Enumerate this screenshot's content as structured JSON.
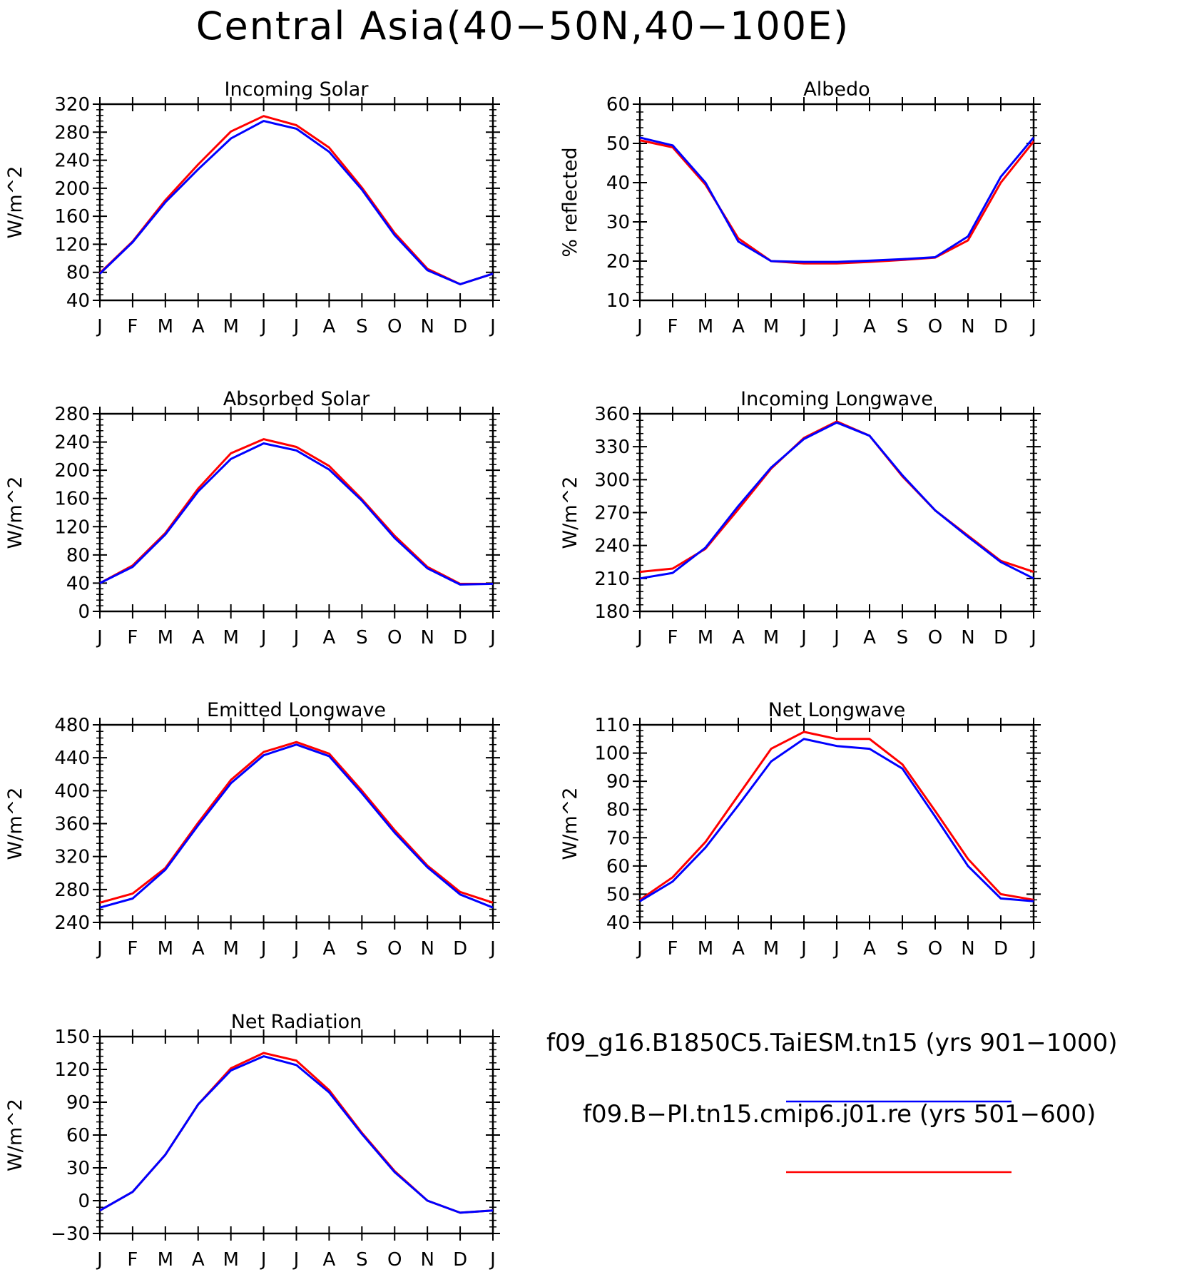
{
  "figure": {
    "title": "Central Asia(40−50N,40−100E)"
  },
  "months": [
    "J",
    "F",
    "M",
    "A",
    "M",
    "J",
    "J",
    "A",
    "S",
    "O",
    "N",
    "D",
    "J"
  ],
  "legend": [
    {
      "label": "f09_g16.B1850C5.TaiESM.tn15 (yrs 901−1000)",
      "color": "#0000ff"
    },
    {
      "label": "f09.B−PI.tn15.cmip6.j01.re (yrs 501−600)",
      "color": "#ff0000"
    }
  ],
  "colors": {
    "blue": "#0000ff",
    "red": "#ff0000"
  },
  "chart_data": [
    {
      "type": "line",
      "title": "Incoming Solar",
      "ylabel": "W/m^2",
      "ylim": [
        40,
        320
      ],
      "yticks": [
        40,
        80,
        120,
        160,
        200,
        240,
        280,
        320
      ],
      "categories": [
        "J",
        "F",
        "M",
        "A",
        "M",
        "J",
        "J",
        "A",
        "S",
        "O",
        "N",
        "D",
        "J"
      ],
      "series": [
        {
          "color": "blue",
          "values": [
            78,
            123,
            180,
            227,
            271,
            296,
            285,
            252,
            198,
            133,
            83,
            63,
            78
          ]
        },
        {
          "color": "red",
          "values": [
            79,
            124,
            183,
            234,
            281,
            303,
            290,
            258,
            201,
            136,
            85,
            63,
            78
          ]
        }
      ]
    },
    {
      "type": "line",
      "title": "Albedo",
      "ylabel": "% reflected",
      "ylim": [
        10,
        60
      ],
      "yticks": [
        10,
        20,
        30,
        40,
        50,
        60
      ],
      "categories": [
        "J",
        "F",
        "M",
        "A",
        "M",
        "J",
        "J",
        "A",
        "S",
        "O",
        "N",
        "D",
        "J"
      ],
      "series": [
        {
          "color": "blue",
          "values": [
            51.5,
            49.5,
            40,
            25,
            20,
            19.8,
            19.8,
            20.1,
            20.5,
            21.0,
            26.3,
            41.5,
            51.5
          ]
        },
        {
          "color": "red",
          "values": [
            50.8,
            49.0,
            39.5,
            25.8,
            20.0,
            19.4,
            19.4,
            19.8,
            20.3,
            20.9,
            25.3,
            40.0,
            50.5
          ]
        }
      ]
    },
    {
      "type": "line",
      "title": "Absorbed Solar",
      "ylabel": "W/m^2",
      "ylim": [
        0,
        280
      ],
      "yticks": [
        0,
        40,
        80,
        120,
        160,
        200,
        240,
        280
      ],
      "categories": [
        "J",
        "F",
        "M",
        "A",
        "M",
        "J",
        "J",
        "A",
        "S",
        "O",
        "N",
        "D",
        "J"
      ],
      "series": [
        {
          "color": "blue",
          "values": [
            40,
            63,
            109,
            170,
            216,
            238,
            228,
            201,
            157,
            104,
            61,
            38,
            39
          ]
        },
        {
          "color": "red",
          "values": [
            40,
            65,
            111,
            174,
            224,
            244,
            233,
            206,
            159,
            107,
            63,
            39,
            39
          ]
        }
      ]
    },
    {
      "type": "line",
      "title": "Incoming Longwave",
      "ylabel": "W/m^2",
      "ylim": [
        180,
        360
      ],
      "yticks": [
        180,
        210,
        240,
        270,
        300,
        330,
        360
      ],
      "categories": [
        "J",
        "F",
        "M",
        "A",
        "M",
        "J",
        "J",
        "A",
        "S",
        "O",
        "N",
        "D",
        "J"
      ],
      "series": [
        {
          "color": "blue",
          "values": [
            210,
            215,
            238,
            276,
            311,
            337,
            352,
            340,
            304,
            272,
            248,
            225,
            210
          ]
        },
        {
          "color": "red",
          "values": [
            216,
            219,
            237,
            273,
            310,
            338,
            353,
            340,
            303,
            272,
            249,
            226,
            216
          ]
        }
      ]
    },
    {
      "type": "line",
      "title": "Emitted Longwave",
      "ylabel": "W/m^2",
      "ylim": [
        240,
        480
      ],
      "yticks": [
        240,
        280,
        320,
        360,
        400,
        440,
        480
      ],
      "categories": [
        "J",
        "F",
        "M",
        "A",
        "M",
        "J",
        "J",
        "A",
        "S",
        "O",
        "N",
        "D",
        "J"
      ],
      "series": [
        {
          "color": "blue",
          "values": [
            258,
            269,
            304,
            358,
            409,
            443,
            456,
            442,
            397,
            349,
            307,
            274,
            258
          ]
        },
        {
          "color": "red",
          "values": [
            264,
            275,
            306,
            361,
            413,
            447,
            459,
            445,
            400,
            352,
            309,
            277,
            264
          ]
        }
      ]
    },
    {
      "type": "line",
      "title": "Net Longwave",
      "ylabel": "W/m^2",
      "ylim": [
        40,
        110
      ],
      "yticks": [
        40,
        50,
        60,
        70,
        80,
        90,
        100,
        110
      ],
      "categories": [
        "J",
        "F",
        "M",
        "A",
        "M",
        "J",
        "J",
        "A",
        "S",
        "O",
        "N",
        "D",
        "J"
      ],
      "series": [
        {
          "color": "blue",
          "values": [
            47.5,
            54.5,
            66.5,
            81.5,
            97,
            105,
            102.5,
            101.5,
            94.5,
            77.5,
            60,
            48.5,
            47.5
          ]
        },
        {
          "color": "red",
          "values": [
            48,
            56,
            68.5,
            85,
            101.5,
            107.5,
            105,
            105,
            96,
            79.5,
            62.5,
            50,
            48
          ]
        }
      ]
    },
    {
      "type": "line",
      "title": "Net Radiation",
      "ylabel": "W/m^2",
      "ylim": [
        -30,
        150
      ],
      "yticks": [
        -30,
        0,
        30,
        60,
        90,
        120,
        150
      ],
      "categories": [
        "J",
        "F",
        "M",
        "A",
        "M",
        "J",
        "J",
        "A",
        "S",
        "O",
        "N",
        "D",
        "J"
      ],
      "series": [
        {
          "color": "blue",
          "values": [
            -9,
            8,
            42,
            88,
            119,
            132,
            124,
            99,
            61,
            26,
            0,
            -11,
            -9
          ]
        },
        {
          "color": "red",
          "values": [
            -9,
            8,
            42,
            88,
            121,
            135,
            128,
            101,
            62,
            27,
            0,
            -11,
            -9
          ]
        }
      ]
    }
  ]
}
